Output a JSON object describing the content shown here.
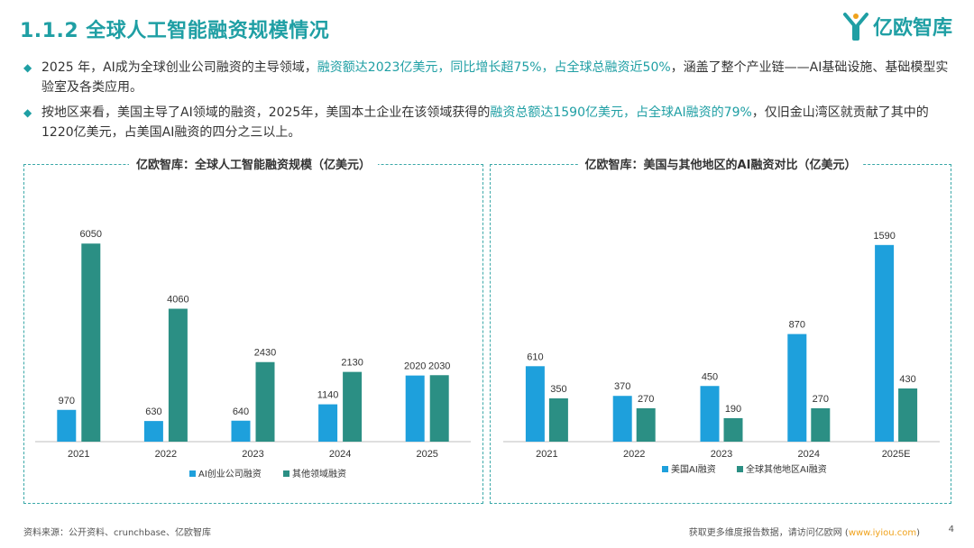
{
  "header": {
    "title": "1.1.2 全球人工智能融资规模情况",
    "logo_text": "亿欧智库"
  },
  "bullets": [
    {
      "segments": [
        {
          "text": "2025 年，AI成为全球创业公司融资的主导领域，",
          "hl": false
        },
        {
          "text": "融资额达2023亿美元，同比增长超75%，占全球总融资近50%",
          "hl": true
        },
        {
          "text": "，涵盖了整个产业链——AI基础设施、基础模型实验室及各类应用。",
          "hl": false
        }
      ]
    },
    {
      "segments": [
        {
          "text": "按地区来看，美国主导了AI领域的融资，2025年，美国本土企业在该领域获得的",
          "hl": false
        },
        {
          "text": "融资总额达1590亿美元，占全球AI融资的79%",
          "hl": true
        },
        {
          "text": "，仅旧金山湾区就贡献了其中的1220亿美元，占美国AI融资的四分之三以上。",
          "hl": false
        }
      ]
    }
  ],
  "chart_data": [
    {
      "type": "bar",
      "title": "亿欧智库：全球人工智能融资规模（亿美元）",
      "categories": [
        "2021",
        "2022",
        "2023",
        "2024",
        "2025"
      ],
      "series": [
        {
          "name": "AI创业公司融资",
          "color": "#1ea0dc",
          "values": [
            970,
            630,
            640,
            1140,
            2020
          ]
        },
        {
          "name": "其他领域融资",
          "color": "#2b8f84",
          "values": [
            6050,
            4060,
            2430,
            2130,
            2030
          ]
        }
      ],
      "ylim": [
        0,
        6800
      ],
      "legend": "bottom"
    },
    {
      "type": "bar",
      "title": "亿欧智库：美国与其他地区的AI融资对比（亿美元）",
      "categories": [
        "2021",
        "2022",
        "2023",
        "2024",
        "2025E"
      ],
      "series": [
        {
          "name": "美国AI融资",
          "color": "#1ea0dc",
          "values": [
            610,
            370,
            450,
            870,
            1590
          ]
        },
        {
          "name": "全球其他地区AI融资",
          "color": "#2b8f84",
          "values": [
            350,
            270,
            190,
            270,
            430
          ]
        }
      ],
      "ylim": [
        0,
        1800
      ],
      "legend": "bottom"
    }
  ],
  "footer": {
    "source": "资料来源：公开资料、crunchbase、亿欧智库",
    "more_prefix": "获取更多维度报告数据，请访问亿欧网 (",
    "more_link": "www.iyiou.com",
    "more_suffix": ")",
    "page": "4"
  }
}
